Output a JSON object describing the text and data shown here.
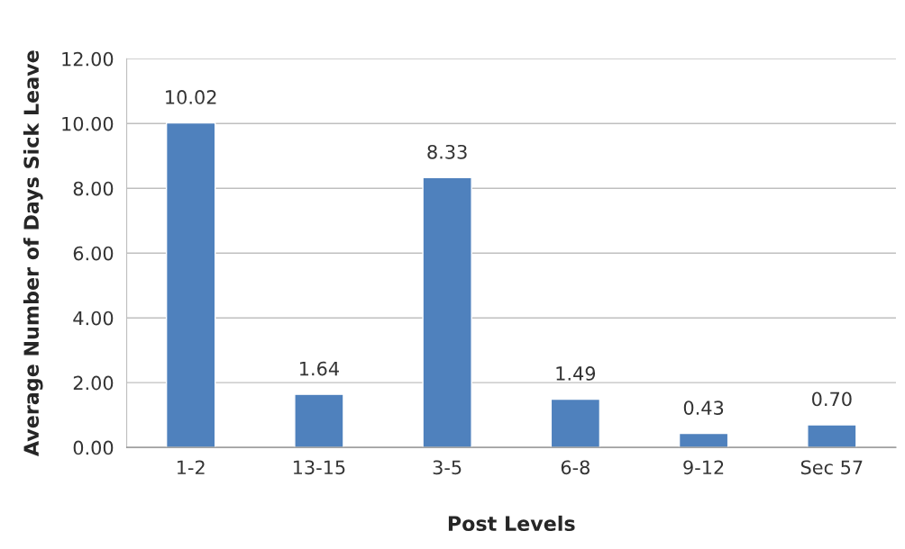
{
  "chart_data": {
    "type": "bar",
    "xlabel": "Post Levels",
    "ylabel": "Average Number of Days Sick Leave",
    "categories": [
      "1-2",
      "13-15",
      "3-5",
      "6-8",
      "9-12",
      "Sec 57"
    ],
    "values": [
      10.02,
      1.64,
      8.33,
      1.49,
      0.43,
      0.7
    ],
    "value_labels": [
      "10.02",
      "1.64",
      "8.33",
      "1.49",
      "0.43",
      "0.70"
    ],
    "color": "#4f81bd",
    "ylim": [
      0,
      12
    ],
    "yticks": [
      {
        "value": 0,
        "label": "0.00"
      },
      {
        "value": 2,
        "label": "2.00"
      },
      {
        "value": 4,
        "label": "4.00"
      },
      {
        "value": 6,
        "label": "6.00"
      },
      {
        "value": 8,
        "label": "8.00"
      },
      {
        "value": 10,
        "label": "10.00"
      },
      {
        "value": 12,
        "label": "12.00"
      }
    ],
    "grid": "y"
  }
}
